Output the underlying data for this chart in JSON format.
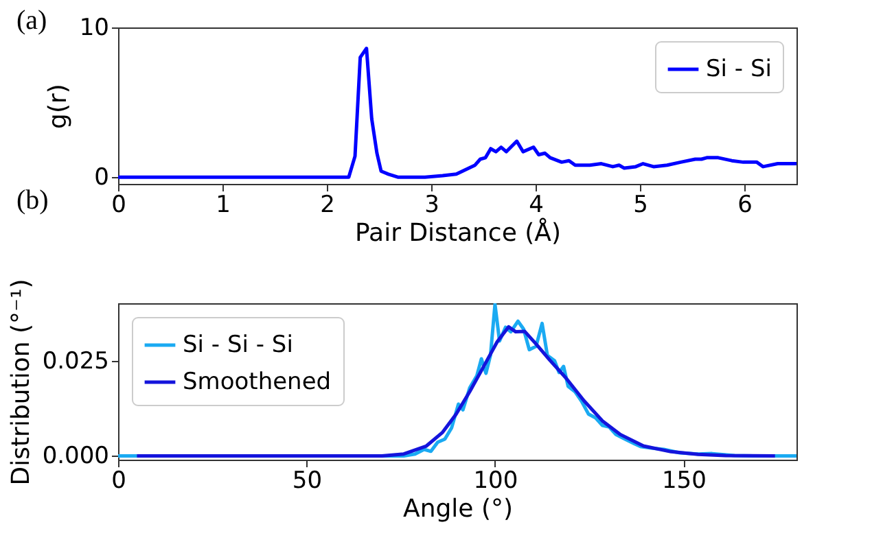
{
  "chart_data": [
    {
      "type": "line",
      "xlabel": "Pair Distance (Å)",
      "ylabel": "g(r)",
      "annotations": [
        "(a)"
      ],
      "xlim": [
        0,
        6.5
      ],
      "ylim": [
        -0.45,
        10
      ],
      "xticks": [
        0,
        1,
        2,
        3,
        4,
        5,
        6
      ],
      "yticks": [
        0,
        10
      ],
      "grid": false,
      "legend": "top right",
      "marker": "none",
      "line_style": "solid",
      "series": [
        {
          "name": "Si - Si",
          "color": "#0000ff",
          "x": [
            0,
            2.21,
            2.27,
            2.32,
            2.38,
            2.43,
            2.48,
            2.52,
            2.59,
            2.68,
            2.94,
            3.11,
            3.24,
            3.33,
            3.42,
            3.47,
            3.52,
            3.57,
            3.62,
            3.67,
            3.72,
            3.82,
            3.88,
            3.98,
            4.03,
            4.09,
            4.14,
            4.25,
            4.32,
            4.38,
            4.52,
            4.63,
            4.74,
            4.8,
            4.85,
            4.96,
            5.03,
            5.13,
            5.26,
            5.39,
            5.53,
            5.59,
            5.64,
            5.75,
            5.88,
            5.99,
            6.12,
            6.18,
            6.32,
            6.4,
            6.5
          ],
          "values": [
            0,
            0,
            1.4,
            8.0,
            8.6,
            3.9,
            1.6,
            0.4,
            0.2,
            0,
            0,
            0.1,
            0.2,
            0.5,
            0.8,
            1.2,
            1.3,
            1.9,
            1.7,
            2.0,
            1.7,
            2.4,
            1.7,
            2.0,
            1.5,
            1.6,
            1.3,
            1.0,
            1.1,
            0.8,
            0.8,
            0.9,
            0.7,
            0.8,
            0.6,
            0.7,
            0.9,
            0.7,
            0.8,
            1.0,
            1.2,
            1.2,
            1.3,
            1.3,
            1.1,
            1.0,
            1.0,
            0.7,
            0.9,
            0.9,
            0.9
          ]
        }
      ]
    },
    {
      "type": "line",
      "xlabel": "Angle (°)",
      "ylabel": "Distribution (°⁻¹)",
      "annotations": [
        "(b)"
      ],
      "xlim": [
        0,
        180
      ],
      "ylim": [
        -0.001,
        0.0401
      ],
      "xticks": [
        0,
        50,
        100,
        150
      ],
      "yticks": [
        {
          "value": 0,
          "label": "0.000"
        },
        {
          "value": 0.025,
          "label": "0.025"
        }
      ],
      "grid": false,
      "legend": "top left",
      "marker": "none",
      "line_style": "solid",
      "series": [
        {
          "name": "Si - Si - Si",
          "color": "#1aaaf2",
          "x": [
            0,
            60,
            75.8,
            78.8,
            81.2,
            83,
            84.8,
            86.7,
            88.5,
            90.3,
            91.5,
            93.3,
            95.2,
            96.4,
            97.6,
            98.8,
            100,
            101.2,
            102.8,
            104.2,
            106.1,
            107.6,
            109.1,
            110.9,
            112.5,
            113.9,
            115.8,
            117,
            118.2,
            119.4,
            121.2,
            123,
            124.8,
            126.7,
            128.5,
            130.3,
            132.1,
            134.5,
            137,
            138.8,
            141.8,
            144.8,
            149,
            153.9,
            157.6,
            163.6,
            168.5,
            180
          ],
          "values": [
            0,
            0,
            0,
            0.0005,
            0.0017,
            0.0012,
            0.0036,
            0.0044,
            0.0074,
            0.0136,
            0.0121,
            0.0179,
            0.0211,
            0.0255,
            0.0217,
            0.0264,
            0.0398,
            0.0302,
            0.0338,
            0.0326,
            0.0354,
            0.0333,
            0.0279,
            0.0288,
            0.0348,
            0.0264,
            0.025,
            0.0219,
            0.0235,
            0.0183,
            0.0169,
            0.0143,
            0.011,
            0.01,
            0.008,
            0.0076,
            0.0056,
            0.0044,
            0.0032,
            0.0024,
            0.002,
            0.0017,
            0.0008,
            0.0005,
            0.0006,
            0.0001,
            0,
            0
          ]
        },
        {
          "name": "Smoothened",
          "color": "#1414dc",
          "x": [
            5,
            70,
            75.8,
            81.8,
            86.1,
            89.7,
            93.3,
            97,
            100.6,
            103.6,
            105.5,
            107.9,
            110.9,
            114.5,
            118.8,
            123.6,
            128.5,
            133.3,
            139.4,
            146.7,
            153.9,
            161.2,
            174.3
          ],
          "values": [
            0,
            0,
            0.0005,
            0.0026,
            0.0062,
            0.011,
            0.0169,
            0.0235,
            0.03,
            0.0339,
            0.0326,
            0.0327,
            0.0294,
            0.0252,
            0.0205,
            0.0145,
            0.0092,
            0.0056,
            0.0026,
            0.0011,
            0.0004,
            0.0001,
            0
          ]
        }
      ]
    }
  ]
}
